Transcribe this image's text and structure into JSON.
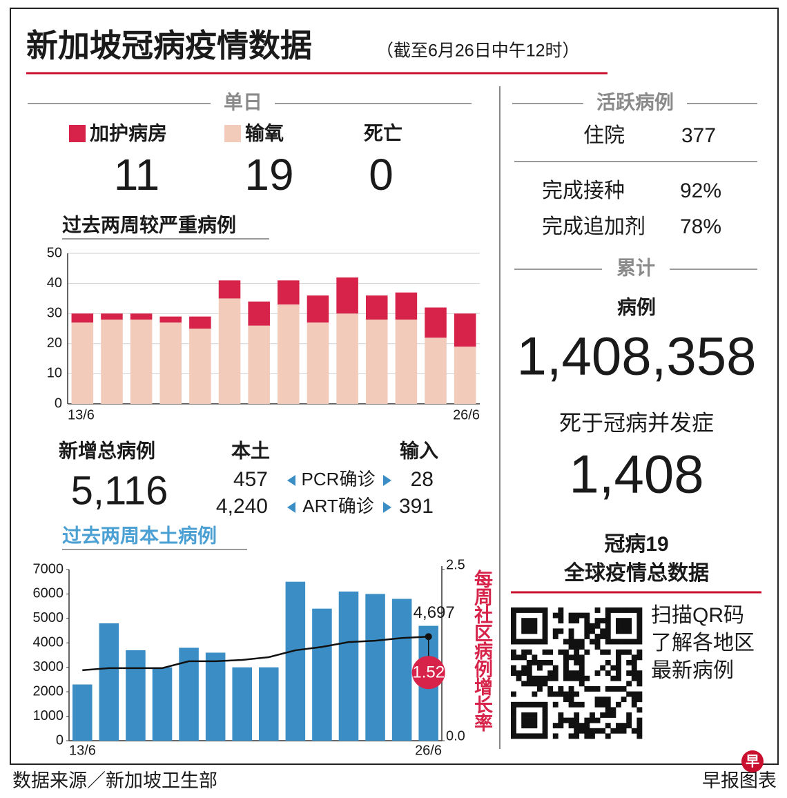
{
  "header": {
    "title": "新加坡冠病疫情数据",
    "subtitle": "（截至6月26日中午12时）"
  },
  "daily": {
    "heading": "单日",
    "icu": "11",
    "oxygen": "19",
    "deaths_label": "死亡",
    "deaths": "0"
  },
  "new_cases": {
    "label": "新增总病例",
    "total": "5,116",
    "local_heading": "本土",
    "imported_heading": "输入",
    "rows": [
      {
        "local": "457",
        "method": "PCR确诊",
        "imported": "28"
      },
      {
        "local": "4,240",
        "method": "ART确诊",
        "imported": "391"
      }
    ]
  },
  "active": {
    "heading": "活跃病例",
    "hospital_label": "住院",
    "hospital": "377",
    "rows": [
      {
        "label": "完成接种",
        "value": "92%"
      },
      {
        "label": "完成追加剂",
        "value": "78%"
      }
    ]
  },
  "cumulative": {
    "heading": "累计",
    "cases_label": "病例",
    "cases": "1,408,358",
    "deaths_label": "死于冠病并发症",
    "deaths": "1,408"
  },
  "global": {
    "title_lines": [
      "冠病19",
      "全球疫情总数据"
    ],
    "qr_lines": [
      "扫描QR码",
      "了解各地区",
      "最新病例"
    ]
  },
  "footer": {
    "source": "数据来源／新加坡卫生部",
    "credit": "早报图表",
    "logo": "早"
  },
  "chart_data": [
    {
      "type": "bar",
      "title": "过去两周较严重病例",
      "stacked": true,
      "categories": [
        "13/6",
        null,
        null,
        null,
        null,
        null,
        null,
        null,
        null,
        null,
        null,
        null,
        null,
        "26/6"
      ],
      "series": [
        {
          "name": "输氧",
          "color": "#f2cbbb",
          "values": [
            27,
            28,
            28,
            27,
            25,
            35,
            26,
            33,
            27,
            30,
            28,
            28,
            22,
            19
          ]
        },
        {
          "name": "加护病房",
          "color": "#d7234a",
          "values": [
            3,
            2,
            2,
            2,
            4,
            6,
            8,
            8,
            9,
            12,
            8,
            9,
            10,
            11
          ]
        }
      ],
      "ylim": [
        0,
        50
      ],
      "yticks": [
        0,
        10,
        20,
        30,
        40,
        50
      ],
      "grid": true
    },
    {
      "type": "bar",
      "title": "过去两周本土病例",
      "categories": [
        "13/6",
        null,
        null,
        null,
        null,
        null,
        null,
        null,
        null,
        null,
        null,
        null,
        null,
        "26/6"
      ],
      "series": [
        {
          "color": "#3a8dc5",
          "values": [
            2300,
            4800,
            3700,
            3000,
            3800,
            3600,
            3000,
            3000,
            6500,
            5400,
            6100,
            6000,
            5800,
            4697
          ],
          "value_labels": [
            null,
            null,
            null,
            null,
            null,
            null,
            null,
            null,
            null,
            null,
            null,
            null,
            null,
            "4,697"
          ]
        },
        {
          "type": "line",
          "axis": "y2",
          "color": "#111111",
          "values": [
            1.03,
            1.06,
            1.06,
            1.06,
            1.16,
            1.16,
            1.18,
            1.22,
            1.32,
            1.37,
            1.44,
            1.46,
            1.5,
            1.52
          ],
          "value_labels": [
            null,
            null,
            null,
            null,
            null,
            null,
            null,
            null,
            null,
            null,
            null,
            null,
            null,
            "1.52"
          ]
        }
      ],
      "ylim": [
        0,
        7000
      ],
      "yticks": [
        0,
        1000,
        2000,
        3000,
        4000,
        5000,
        6000,
        7000
      ],
      "y2lim": [
        0,
        2.5
      ],
      "y2ticks": [
        {
          "value": 0,
          "label": "0.0"
        },
        {
          "value": 2.5,
          "label": "2.5"
        }
      ],
      "y2label": "每周社区病例增长率",
      "y2color": "#d7234a",
      "grid": false
    }
  ]
}
